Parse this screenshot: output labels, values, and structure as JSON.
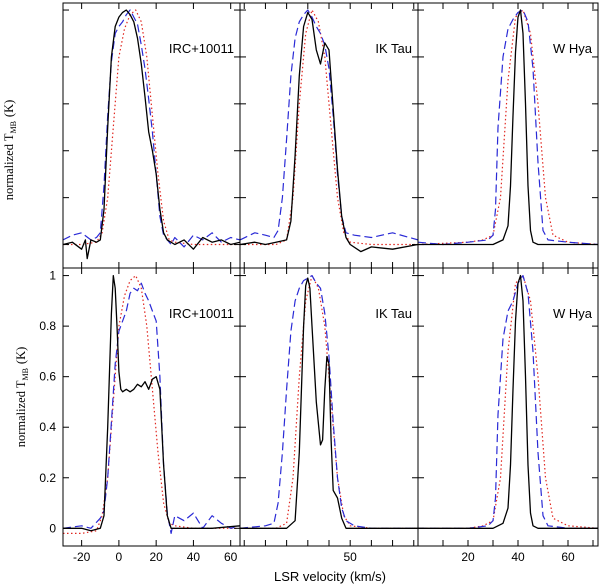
{
  "figure": {
    "xlabel": "LSR velocity (km/s)",
    "ylabel_text": "normalized T",
    "ylabel_sub": "MB",
    "ylabel_unit": "(K)"
  },
  "colors": {
    "black": "#000000",
    "blue": "#2a2ad6",
    "red": "#e0261f"
  },
  "chart_data": [
    {
      "type": "line",
      "id": "top-irc",
      "row": 0,
      "col": 0,
      "title": "IRC+10011",
      "xlim": [
        -30,
        65
      ],
      "ylim": [
        -0.1,
        1.03
      ],
      "xticks": [
        -20,
        0,
        20,
        40,
        60
      ],
      "yticks": [
        0,
        0.2,
        0.4,
        0.6,
        0.8,
        1
      ],
      "show_xtick_labels": false,
      "show_ytick_labels": false,
      "series": [
        {
          "name": "black-solid",
          "style": "solid",
          "x": [
            -30,
            -25,
            -20,
            -18,
            -17,
            -15,
            -12,
            -10,
            -8,
            -6,
            -4,
            -2,
            0,
            2,
            4,
            6,
            8,
            10,
            12,
            14,
            16,
            18,
            20,
            22,
            24,
            26,
            30,
            35,
            40,
            45,
            50,
            55,
            60,
            65
          ],
          "y": [
            0.0,
            0.01,
            -0.02,
            0.02,
            -0.06,
            0.02,
            0.01,
            0.02,
            0.15,
            0.5,
            0.8,
            0.93,
            0.97,
            0.99,
            1.0,
            0.98,
            0.95,
            0.88,
            0.77,
            0.63,
            0.48,
            0.4,
            0.3,
            0.15,
            0.05,
            0.02,
            0.0,
            0.02,
            -0.02,
            0.03,
            0.01,
            0.02,
            0.0,
            0.01
          ]
        },
        {
          "name": "blue-dashed",
          "style": "dashed",
          "x": [
            -30,
            -25,
            -20,
            -15,
            -12,
            -10,
            -8,
            -6,
            -4,
            -2,
            0,
            2,
            4,
            6,
            8,
            10,
            12,
            14,
            16,
            18,
            20,
            22,
            24,
            26,
            28,
            30,
            35,
            40,
            45,
            50,
            55,
            60,
            65
          ],
          "y": [
            0.02,
            0.04,
            0.05,
            0.02,
            0.03,
            0.05,
            0.25,
            0.55,
            0.78,
            0.9,
            0.93,
            0.95,
            0.98,
            1.0,
            0.97,
            0.94,
            0.85,
            0.75,
            0.62,
            0.48,
            0.3,
            0.12,
            0.04,
            0.02,
            0.0,
            0.03,
            -0.01,
            0.04,
            0.02,
            0.05,
            0.01,
            0.03,
            0.02
          ]
        },
        {
          "name": "red-dotted",
          "style": "dotted",
          "x": [
            -30,
            -20,
            -12,
            -9,
            -6,
            -3,
            0,
            3,
            6,
            9,
            12,
            15,
            18,
            21,
            24,
            27,
            30,
            40,
            50,
            65
          ],
          "y": [
            0.0,
            0.0,
            0.01,
            0.05,
            0.2,
            0.5,
            0.8,
            0.92,
            0.98,
            1.0,
            0.95,
            0.8,
            0.55,
            0.3,
            0.1,
            0.02,
            0.01,
            0.0,
            0.0,
            0.0
          ]
        }
      ]
    },
    {
      "type": "line",
      "id": "top-ik",
      "row": 0,
      "col": 1,
      "title": "IK Tau",
      "xlim": [
        -2,
        82
      ],
      "ylim": [
        -0.1,
        1.03
      ],
      "xticks": [
        0,
        10,
        20,
        30,
        40,
        50,
        60,
        70,
        80
      ],
      "yticks": [
        0,
        0.2,
        0.4,
        0.6,
        0.8,
        1
      ],
      "show_xtick_labels": false,
      "show_ytick_labels": false,
      "series": [
        {
          "name": "black-solid",
          "style": "solid",
          "x": [
            -2,
            5,
            10,
            15,
            20,
            22,
            24,
            26,
            28,
            30,
            32,
            34,
            36,
            38,
            40,
            42,
            44,
            46,
            48,
            50,
            55,
            60,
            70,
            82
          ],
          "y": [
            0.0,
            0.01,
            0.0,
            0.01,
            0.02,
            0.1,
            0.38,
            0.72,
            0.93,
            0.99,
            0.96,
            0.83,
            0.77,
            0.86,
            0.83,
            0.58,
            0.32,
            0.12,
            0.03,
            0.0,
            -0.03,
            -0.01,
            -0.02,
            0.0
          ]
        },
        {
          "name": "blue-dashed",
          "style": "dashed",
          "x": [
            -2,
            5,
            10,
            14,
            16,
            18,
            20,
            22,
            24,
            26,
            28,
            30,
            32,
            34,
            36,
            38,
            40,
            42,
            44,
            46,
            48,
            52,
            60,
            70,
            82
          ],
          "y": [
            0.02,
            0.05,
            0.04,
            0.03,
            0.06,
            0.2,
            0.45,
            0.72,
            0.88,
            0.95,
            0.98,
            1.0,
            0.97,
            0.93,
            0.9,
            0.85,
            0.75,
            0.55,
            0.3,
            0.12,
            0.05,
            0.04,
            0.03,
            0.05,
            0.02
          ]
        },
        {
          "name": "red-dotted",
          "style": "dotted",
          "x": [
            -2,
            15,
            20,
            23,
            26,
            29,
            32,
            35,
            38,
            41,
            44,
            47,
            50,
            60,
            82
          ],
          "y": [
            0.0,
            0.0,
            0.02,
            0.2,
            0.6,
            0.9,
            1.0,
            0.95,
            0.8,
            0.5,
            0.2,
            0.05,
            0.01,
            0.0,
            0.0
          ]
        }
      ]
    },
    {
      "type": "line",
      "id": "top-whya",
      "row": 0,
      "col": 2,
      "title": "W Hya",
      "xlim": [
        0,
        72
      ],
      "ylim": [
        -0.1,
        1.03
      ],
      "xticks": [
        10,
        20,
        30,
        40,
        50,
        60,
        70
      ],
      "yticks": [
        0,
        0.2,
        0.4,
        0.6,
        0.8,
        1
      ],
      "show_xtick_labels": false,
      "show_ytick_labels": false,
      "series": [
        {
          "name": "black-solid",
          "style": "solid",
          "x": [
            0,
            10,
            20,
            30,
            34,
            36,
            37,
            38,
            39,
            40,
            41,
            42,
            43,
            44,
            45,
            46,
            48,
            55,
            72
          ],
          "y": [
            0.0,
            0.0,
            0.0,
            0.0,
            0.02,
            0.08,
            0.25,
            0.55,
            0.82,
            0.97,
            1.0,
            0.9,
            0.6,
            0.25,
            0.06,
            0.01,
            0.0,
            0.0,
            0.0
          ]
        },
        {
          "name": "blue-dashed",
          "style": "dashed",
          "x": [
            0,
            10,
            20,
            28,
            30,
            31,
            32,
            34,
            36,
            38,
            40,
            42,
            44,
            46,
            48,
            50,
            52,
            60,
            72
          ],
          "y": [
            0.01,
            0.0,
            0.01,
            0.02,
            0.04,
            0.15,
            0.5,
            0.8,
            0.92,
            0.96,
            0.99,
            1.0,
            0.95,
            0.75,
            0.35,
            0.06,
            0.02,
            0.01,
            0.0
          ]
        },
        {
          "name": "red-dotted",
          "style": "dotted",
          "x": [
            0,
            20,
            26,
            30,
            33,
            36,
            39,
            42,
            45,
            48,
            51,
            54,
            60,
            72
          ],
          "y": [
            0.0,
            0.01,
            0.02,
            0.04,
            0.2,
            0.7,
            0.97,
            1.0,
            0.9,
            0.6,
            0.2,
            0.04,
            0.01,
            0.0
          ]
        }
      ]
    },
    {
      "type": "line",
      "id": "bot-irc",
      "row": 1,
      "col": 0,
      "title": "IRC+10011",
      "xlim": [
        -30,
        65
      ],
      "ylim": [
        -0.07,
        1.03
      ],
      "xticks": [
        -20,
        0,
        20,
        40,
        60
      ],
      "yticks": [
        0,
        0.2,
        0.4,
        0.6,
        0.8,
        1
      ],
      "show_xtick_labels": true,
      "show_ytick_labels": true,
      "series": [
        {
          "name": "black-solid",
          "style": "solid",
          "x": [
            -30,
            -20,
            -15,
            -10,
            -8,
            -6,
            -4,
            -3,
            -2,
            -1,
            0,
            1,
            2,
            4,
            6,
            8,
            10,
            12,
            14,
            16,
            18,
            20,
            22,
            24,
            26,
            28,
            30,
            40,
            50,
            65
          ],
          "y": [
            0.0,
            0.0,
            -0.01,
            0.0,
            0.05,
            0.4,
            0.85,
            1.0,
            0.95,
            0.8,
            0.62,
            0.55,
            0.54,
            0.55,
            0.54,
            0.55,
            0.57,
            0.56,
            0.58,
            0.55,
            0.59,
            0.6,
            0.55,
            0.25,
            0.05,
            0.0,
            0.0,
            0.0,
            0.0,
            0.01
          ]
        },
        {
          "name": "blue-dashed",
          "style": "dashed",
          "x": [
            -30,
            -20,
            -15,
            -10,
            -8,
            -6,
            -4,
            -2,
            0,
            2,
            4,
            6,
            8,
            10,
            12,
            14,
            16,
            18,
            20,
            22,
            24,
            26,
            28,
            30,
            35,
            40,
            45,
            50,
            55,
            60,
            65
          ],
          "y": [
            0.0,
            0.01,
            0.0,
            0.04,
            0.07,
            0.2,
            0.42,
            0.65,
            0.78,
            0.82,
            0.86,
            0.93,
            0.95,
            0.94,
            0.97,
            0.93,
            0.9,
            0.86,
            0.82,
            0.6,
            0.25,
            0.06,
            -0.02,
            0.05,
            0.03,
            0.06,
            0.0,
            0.05,
            0.02,
            0.0,
            0.01
          ]
        },
        {
          "name": "red-dotted",
          "style": "dotted",
          "x": [
            -30,
            -20,
            -12,
            -9,
            -6,
            -3,
            0,
            3,
            6,
            9,
            12,
            15,
            18,
            21,
            24,
            27,
            30,
            40,
            50,
            65
          ],
          "y": [
            -0.02,
            -0.02,
            -0.01,
            0.05,
            0.2,
            0.5,
            0.8,
            0.92,
            0.98,
            1.0,
            0.95,
            0.8,
            0.55,
            0.3,
            0.1,
            0.02,
            0.01,
            0.0,
            0.0,
            0.0
          ]
        }
      ]
    },
    {
      "type": "line",
      "id": "bot-ik",
      "row": 1,
      "col": 1,
      "title": "IK Tau",
      "xlim": [
        -2,
        82
      ],
      "ylim": [
        -0.07,
        1.03
      ],
      "xticks": [
        0,
        10,
        20,
        30,
        40,
        50,
        60,
        70,
        80
      ],
      "yticks": [
        0,
        0.2,
        0.4,
        0.6,
        0.8,
        1
      ],
      "show_xtick_labels": true,
      "show_ytick_labels": false,
      "xtick_labels": [
        50
      ],
      "series": [
        {
          "name": "black-solid",
          "style": "solid",
          "x": [
            -2,
            10,
            20,
            24,
            26,
            28,
            29,
            30,
            31,
            32,
            34,
            36,
            37,
            38,
            39,
            40,
            41,
            42,
            44,
            46,
            48,
            52,
            60,
            82
          ],
          "y": [
            0.0,
            0.0,
            0.0,
            0.03,
            0.3,
            0.8,
            0.96,
            0.99,
            0.95,
            0.8,
            0.5,
            0.33,
            0.35,
            0.55,
            0.68,
            0.65,
            0.35,
            0.15,
            0.12,
            0.04,
            0.0,
            0.0,
            0.0,
            0.0
          ]
        },
        {
          "name": "blue-dashed",
          "style": "dashed",
          "x": [
            -2,
            10,
            14,
            16,
            18,
            20,
            22,
            24,
            26,
            28,
            30,
            32,
            34,
            36,
            38,
            40,
            42,
            44,
            46,
            48,
            52,
            60,
            82
          ],
          "y": [
            0.0,
            0.01,
            0.02,
            0.1,
            0.3,
            0.55,
            0.78,
            0.9,
            0.95,
            0.98,
            0.99,
            1.0,
            0.97,
            0.95,
            0.85,
            0.68,
            0.42,
            0.2,
            0.08,
            0.03,
            0.01,
            0.0,
            0.0
          ]
        },
        {
          "name": "red-dotted",
          "style": "dotted",
          "x": [
            -2,
            15,
            20,
            23,
            26,
            29,
            32,
            35,
            38,
            41,
            44,
            47,
            50,
            60,
            82
          ],
          "y": [
            0.0,
            0.0,
            0.02,
            0.2,
            0.6,
            0.9,
            1.0,
            0.95,
            0.8,
            0.5,
            0.2,
            0.05,
            0.01,
            0.0,
            0.0
          ]
        }
      ]
    },
    {
      "type": "line",
      "id": "bot-whya",
      "row": 1,
      "col": 2,
      "title": "W Hya",
      "xlim": [
        0,
        72
      ],
      "ylim": [
        -0.07,
        1.03
      ],
      "xticks": [
        10,
        20,
        30,
        40,
        50,
        60,
        70
      ],
      "yticks": [
        0,
        0.2,
        0.4,
        0.6,
        0.8,
        1
      ],
      "show_xtick_labels": true,
      "show_ytick_labels": false,
      "xtick_labels": [
        20,
        40,
        60
      ],
      "series": [
        {
          "name": "black-solid",
          "style": "solid",
          "x": [
            0,
            10,
            20,
            30,
            34,
            36,
            37,
            38,
            39,
            40,
            41,
            42,
            43,
            44,
            45,
            46,
            48,
            55,
            72
          ],
          "y": [
            0.0,
            0.0,
            0.0,
            0.0,
            0.02,
            0.08,
            0.25,
            0.55,
            0.82,
            0.97,
            1.0,
            0.9,
            0.6,
            0.25,
            0.06,
            0.01,
            0.0,
            0.0,
            0.0
          ]
        },
        {
          "name": "blue-dashed",
          "style": "dashed",
          "x": [
            0,
            10,
            20,
            28,
            30,
            31,
            32,
            34,
            36,
            38,
            40,
            42,
            44,
            46,
            48,
            50,
            52,
            60,
            72
          ],
          "y": [
            0.0,
            0.0,
            0.0,
            0.01,
            0.03,
            0.12,
            0.45,
            0.75,
            0.86,
            0.9,
            0.97,
            1.0,
            0.93,
            0.7,
            0.3,
            0.05,
            0.01,
            0.0,
            0.0
          ]
        },
        {
          "name": "red-dotted",
          "style": "dotted",
          "x": [
            0,
            20,
            26,
            30,
            33,
            36,
            39,
            42,
            45,
            48,
            51,
            54,
            60,
            72
          ],
          "y": [
            0.0,
            0.0,
            0.01,
            0.03,
            0.2,
            0.7,
            0.97,
            1.0,
            0.9,
            0.6,
            0.2,
            0.04,
            0.01,
            0.0
          ]
        }
      ]
    }
  ]
}
